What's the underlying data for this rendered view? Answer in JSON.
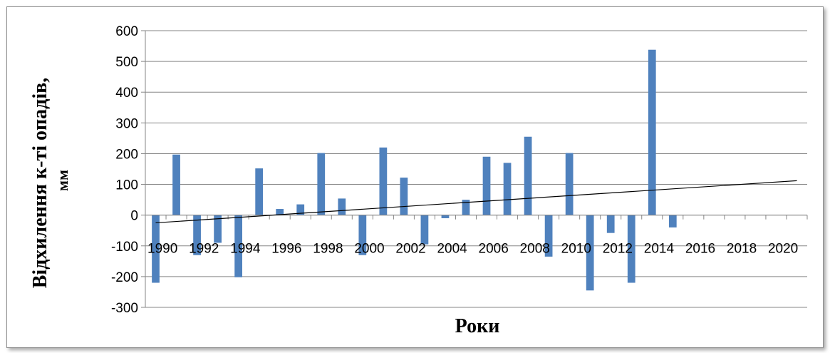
{
  "chart_data": {
    "type": "bar",
    "title": "",
    "xlabel": "Роки",
    "ylabel_line1": "Відхилення к-ті опадів,",
    "ylabel_line2": "мм",
    "ylim": [
      -300,
      600
    ],
    "yticks": [
      "600",
      "500",
      "400",
      "300",
      "200",
      "100",
      "0",
      "-100",
      "-200",
      "-300"
    ],
    "xtick_labels": [
      "1990",
      "1992",
      "1994",
      "1996",
      "1998",
      "2000",
      "2002",
      "2004",
      "2006",
      "2008",
      "2010",
      "2012",
      "2014",
      "2016",
      "2018",
      "2020"
    ],
    "categories": [
      1990,
      1991,
      1992,
      1993,
      1994,
      1995,
      1996,
      1997,
      1998,
      1999,
      2000,
      2001,
      2002,
      2003,
      2004,
      2005,
      2006,
      2007,
      2008,
      2009,
      2010,
      2011,
      2012,
      2013,
      2014,
      2015,
      2016,
      2017,
      2018,
      2019,
      2020,
      2021
    ],
    "values": [
      -220,
      197,
      -130,
      -90,
      -202,
      152,
      20,
      35,
      202,
      54,
      -130,
      220,
      122,
      -95,
      -10,
      50,
      190,
      170,
      255,
      -135,
      202,
      -245,
      -58,
      -220,
      538,
      -40,
      null,
      null,
      null,
      null,
      null,
      null
    ],
    "trendline": {
      "x_start": 1990,
      "y_start": -25,
      "x_end": 2021,
      "y_end": 112
    },
    "grid": true,
    "legend": "none",
    "bar_color": "#4f81bd",
    "trend_color": "#000000",
    "grid_color": "#868686"
  }
}
